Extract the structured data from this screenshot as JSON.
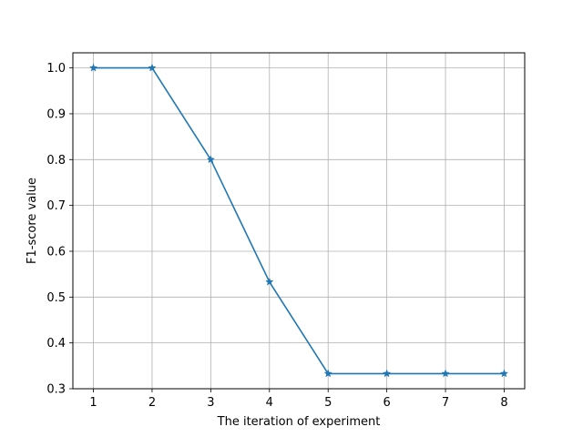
{
  "chart_data": {
    "type": "line",
    "title": "",
    "xlabel": "The iteration of experiment",
    "ylabel": "F1-score value",
    "x": [
      1,
      2,
      3,
      4,
      5,
      6,
      7,
      8
    ],
    "series": [
      {
        "values": [
          1.0,
          1.0,
          0.8,
          0.533,
          0.333,
          0.333,
          0.333,
          0.333
        ],
        "color": "#1f77b4",
        "marker": "star"
      }
    ],
    "xlim": [
      0.65,
      8.35
    ],
    "ylim": [
      0.3,
      1.033
    ],
    "xticks": [
      1,
      2,
      3,
      4,
      5,
      6,
      7,
      8
    ],
    "xtick_labels": [
      "1",
      "2",
      "3",
      "4",
      "5",
      "6",
      "7",
      "8"
    ],
    "yticks": [
      0.3,
      0.4,
      0.5,
      0.6,
      0.7,
      0.8,
      0.9,
      1.0
    ],
    "ytick_labels": [
      "0.3",
      "0.4",
      "0.5",
      "0.6",
      "0.7",
      "0.8",
      "0.9",
      "1.0"
    ],
    "grid": true,
    "legend": "none"
  }
}
